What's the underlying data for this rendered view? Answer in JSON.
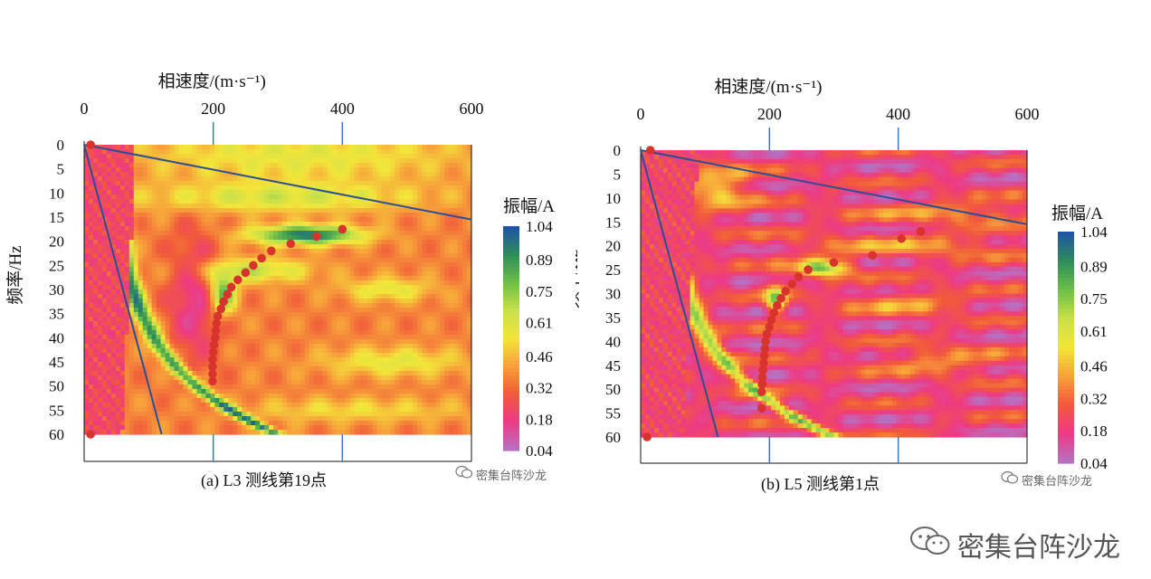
{
  "watermark": {
    "label": "密集台阵沙龙",
    "icon": "wechat-icon"
  },
  "colors": {
    "colorbar": [
      "#b86fc0",
      "#ee3a84",
      "#f15a3a",
      "#f7a23a",
      "#f3e63a",
      "#c9e04a",
      "#6fc048",
      "#2f8f58",
      "#1f54a6"
    ],
    "line": "#2c4f93",
    "marker": "#d8332c"
  },
  "chart_data": [
    {
      "type": "heatmap",
      "panel": "a",
      "caption": "(a) L3 测线第19点",
      "xlabel": "相速度/(m·s⁻¹)",
      "ylabel": "频率/Hz",
      "x_ticks": [
        0,
        200,
        400,
        600
      ],
      "y_ticks": [
        0,
        5,
        10,
        15,
        20,
        25,
        30,
        35,
        40,
        45,
        50,
        55,
        60
      ],
      "xlim": [
        0,
        600
      ],
      "ylim": [
        0,
        60
      ],
      "x_axis_position": "top",
      "colorbar": {
        "title": "振幅/A",
        "ticks": [
          1.04,
          0.89,
          0.75,
          0.61,
          0.46,
          0.32,
          0.18,
          0.04
        ]
      },
      "lines": [
        {
          "x": [
            0,
            600
          ],
          "y": [
            0,
            15.5
          ]
        },
        {
          "x": [
            0,
            120
          ],
          "y": [
            0,
            60
          ]
        }
      ],
      "picks": {
        "x": [
          10,
          400,
          360,
          320,
          290,
          275,
          262,
          250,
          238,
          228,
          222,
          216,
          212,
          207,
          205,
          204,
          203,
          201,
          200,
          199,
          199,
          199,
          199,
          10
        ],
        "y": [
          0,
          17.5,
          19,
          20.5,
          22,
          23.5,
          25,
          26.5,
          28,
          29.5,
          31,
          32.5,
          34,
          35.5,
          37,
          38.5,
          40,
          41.5,
          43,
          44.5,
          46,
          47.5,
          49,
          60
        ]
      }
    },
    {
      "type": "heatmap",
      "panel": "b",
      "caption": "(b) L5 测线第1点",
      "xlabel": "相速度/(m·s⁻¹)",
      "ylabel": "频率/Hz",
      "x_ticks": [
        0,
        200,
        400,
        600
      ],
      "y_ticks": [
        0,
        5,
        10,
        15,
        20,
        25,
        30,
        35,
        40,
        45,
        50,
        55,
        60
      ],
      "xlim": [
        0,
        600
      ],
      "ylim": [
        0,
        60
      ],
      "x_axis_position": "top",
      "colorbar": {
        "title": "振幅/A",
        "ticks": [
          1.04,
          0.89,
          0.75,
          0.61,
          0.46,
          0.32,
          0.18,
          0.04
        ]
      },
      "lines": [
        {
          "x": [
            0,
            600
          ],
          "y": [
            0,
            15.5
          ]
        },
        {
          "x": [
            0,
            120
          ],
          "y": [
            0,
            60
          ]
        }
      ],
      "picks": {
        "x": [
          15,
          435,
          405,
          360,
          300,
          260,
          245,
          235,
          225,
          218,
          212,
          207,
          203,
          200,
          196,
          194,
          193,
          192,
          191,
          190,
          189,
          189,
          188,
          188,
          10
        ],
        "y": [
          0,
          17,
          18.5,
          22,
          23.5,
          25,
          26.5,
          28,
          29.5,
          31,
          32.5,
          34,
          35.5,
          37,
          38.5,
          40,
          41.5,
          43,
          44.5,
          46,
          47.5,
          49,
          50.5,
          54,
          60
        ]
      }
    }
  ]
}
